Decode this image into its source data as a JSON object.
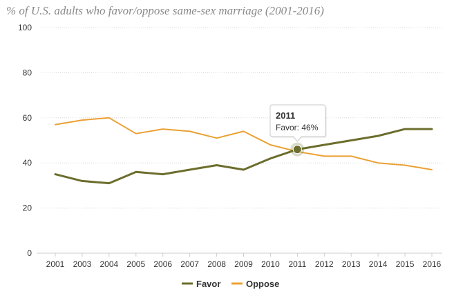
{
  "chart_data": {
    "type": "line",
    "title": "% of U.S. adults who favor/oppose same-sex marriage (2001-2016)",
    "x": [
      "2001",
      "2003",
      "2004",
      "2005",
      "2006",
      "2007",
      "2008",
      "2009",
      "2010",
      "2011",
      "2012",
      "2013",
      "2014",
      "2015",
      "2016"
    ],
    "ylim": [
      0,
      100
    ],
    "yticks": [
      "0",
      "20",
      "40",
      "60",
      "80",
      "100"
    ],
    "grid": true,
    "legend_position": "bottom-center",
    "series": [
      {
        "name": "Favor",
        "color": "#6b6e2c",
        "values": [
          35,
          32,
          31,
          36,
          35,
          37,
          39,
          37,
          42,
          46,
          48,
          50,
          52,
          55,
          55
        ]
      },
      {
        "name": "Oppose",
        "color": "#eba032",
        "values": [
          57,
          59,
          60,
          53,
          55,
          54,
          51,
          54,
          48,
          45,
          43,
          43,
          40,
          39,
          37
        ]
      }
    ],
    "tooltip": {
      "year": "2011",
      "text": "Favor: 46%",
      "series_index": 0,
      "point_index": 9
    }
  }
}
